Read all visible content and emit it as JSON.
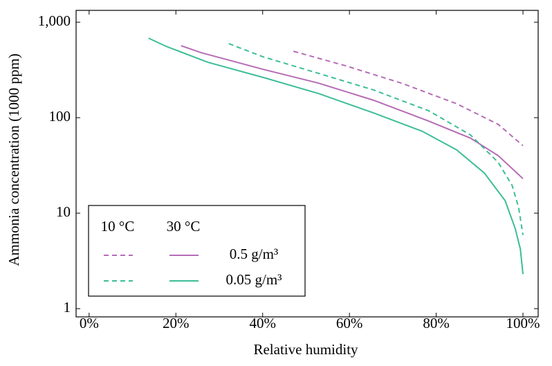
{
  "chart_data": {
    "type": "line",
    "x_label": "Relative humidity",
    "y_label": "Ammonia concentration (1000 ppm)",
    "xlim": [
      -3,
      103.5
    ],
    "ylim": [
      0.82,
      1330
    ],
    "y_scale": "log",
    "xticks": [
      {
        "value": 0,
        "label": "0%"
      },
      {
        "value": 20,
        "label": "20%"
      },
      {
        "value": 40,
        "label": "40%"
      },
      {
        "value": 60,
        "label": "60%"
      },
      {
        "value": 80,
        "label": "80%"
      },
      {
        "value": 100,
        "label": "100%"
      }
    ],
    "yticks": [
      1,
      10,
      100,
      {
        "value": 1000,
        "label": "1,000"
      }
    ],
    "temperatures": [
      "10 °C",
      "30 °C"
    ],
    "line_styles": [
      "dashed",
      "solid"
    ],
    "legend_position": "lower left",
    "series": [
      {
        "name": "0.5 g/m³",
        "color": "#b56cb5",
        "curves": [
          {
            "x": [
              47.1,
              59.2,
              72,
              84.7,
              94.3,
              100
            ],
            "values": [
              496,
              349,
              230,
              140,
              85,
              51
            ]
          },
          {
            "x": [
              21.2,
              25.8,
              40.1,
              52.9,
              65.6,
              78.3,
              87.9,
              94.3,
              100
            ],
            "values": [
              567,
              480,
              321,
              230,
              152,
              92,
              61,
              40,
              23
            ]
          }
        ]
      },
      {
        "name": "0.05 g/m³",
        "color": "#3cbd98",
        "curves": [
          {
            "x": [
              32.2,
              40.1,
              52.9,
              65.6,
              78.3,
              87.9,
              94.3,
              97.5,
              99,
              100
            ],
            "values": [
              596,
              434,
              291,
              195,
              118,
              66,
              34,
              19.5,
              11.4,
              5.9
            ]
          },
          {
            "x": [
              13.7,
              17.8,
              27.4,
              40.1,
              52.9,
              65.6,
              76.8,
              84.7,
              91.1,
              95.9,
              98.2,
              99.4,
              100
            ],
            "values": [
              681,
              558,
              380,
              264,
              179,
              112,
              72,
              46,
              26.3,
              13.5,
              6.9,
              4.2,
              2.3
            ]
          }
        ]
      }
    ]
  }
}
